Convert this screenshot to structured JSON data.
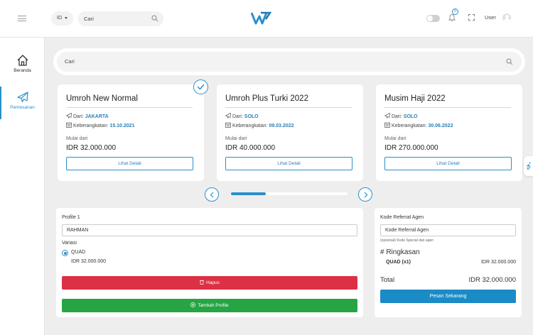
{
  "header": {
    "language": "ID",
    "search_placeholder": "Cari",
    "notification_count": "0",
    "user_label": "User"
  },
  "sidebar": {
    "items": [
      {
        "label": "Beranda",
        "icon": "home-icon"
      },
      {
        "label": "Pemesanan",
        "icon": "airplane-icon",
        "active": true
      }
    ]
  },
  "main": {
    "search_placeholder": "Cari"
  },
  "packages": [
    {
      "title": "Umroh New Normal",
      "from_label": "Dari:",
      "from_city": "JAKARTA",
      "departure_label": "Keberangkatan:",
      "departure_date": "15.10.2021",
      "starting_label": "Mulai dari",
      "price": "IDR 32.000.000",
      "button_label": "Lihat Detail",
      "selected": true
    },
    {
      "title": "Umroh Plus Turki 2022",
      "from_label": "Dari:",
      "from_city": "SOLO",
      "departure_label": "Keberangkatan:",
      "departure_date": "09.03.2022",
      "starting_label": "Mulai dari",
      "price": "IDR 40.000.000",
      "button_label": "Lihat Detail",
      "selected": false
    },
    {
      "title": "Musim Haji 2022",
      "from_label": "Dari:",
      "from_city": "SOLO",
      "departure_label": "Keberangkatan:",
      "departure_date": "30.06.2022",
      "starting_label": "Mulai dari",
      "price": "IDR 270.000.000",
      "button_label": "Lihat Detail",
      "selected": false
    }
  ],
  "carousel": {
    "progress": 0.3
  },
  "profile": {
    "label": "Profile 1",
    "name_value": "RAHMAN",
    "variation_label": "Variasi",
    "variation_option": "QUAD",
    "variation_price": "IDR 32.000.000",
    "delete_label": "Hapus",
    "add_label": "Tambah Profile"
  },
  "summary": {
    "referral_label": "Kode Referral Agen",
    "referral_placeholder": "Kode Referral Agen",
    "referral_hint": "(opsional) Kode Special dari agen",
    "heading": "# Ringkasan",
    "item_name": "QUAD (x1)",
    "item_price": "IDR 32.000.000",
    "total_label": "Total",
    "total_value": "IDR 32.000.000",
    "order_label": "Pesan Sekarang"
  },
  "colors": {
    "accent": "#2a8fcb",
    "danger": "#dc3045",
    "success": "#27a544",
    "order": "#1b8bc6",
    "background": "#eeeeee"
  }
}
